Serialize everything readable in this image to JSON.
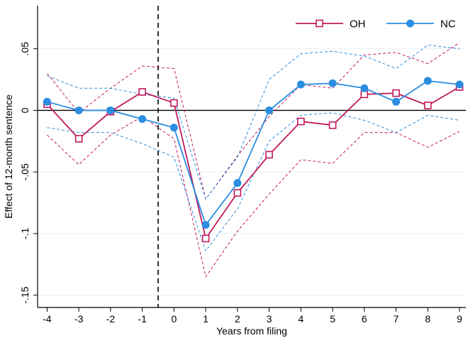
{
  "chart_data": {
    "type": "line",
    "title": "",
    "xlabel": "Years from filing",
    "ylabel": "Effect of 12-month sentence",
    "x": [
      -4,
      -3,
      -2,
      -1,
      0,
      1,
      2,
      3,
      4,
      5,
      6,
      7,
      8,
      9
    ],
    "xlim": [
      -4.3,
      9.2
    ],
    "ylim": [
      -0.16,
      0.085
    ],
    "x_tick_labels": [
      "-4",
      "-3",
      "-2",
      "-1",
      "0",
      "1",
      "2",
      "3",
      "4",
      "5",
      "6",
      "7",
      "8",
      "9"
    ],
    "y_ticks": [
      0.05,
      0,
      -0.05,
      -0.1,
      -0.15
    ],
    "y_tick_labels": [
      ".05",
      "0",
      "-.05",
      "-.1",
      "-.15"
    ],
    "reference_lines": {
      "horizontal_y": 0,
      "vertical_dashed_x": -0.5
    },
    "grid": "horizontal",
    "legend_position": "top-right",
    "series": [
      {
        "name": "OH",
        "color": "#c2185b",
        "marker": "hollow-square",
        "values": [
          0.005,
          -0.023,
          -0.001,
          0.015,
          0.006,
          -0.104,
          -0.067,
          -0.036,
          -0.009,
          -0.012,
          0.013,
          0.014,
          0.004,
          0.019
        ],
        "ci_lower": [
          -0.02,
          -0.044,
          -0.02,
          -0.005,
          -0.023,
          -0.135,
          -0.098,
          -0.068,
          -0.04,
          -0.043,
          -0.018,
          -0.018,
          -0.03,
          -0.017
        ],
        "ci_upper": [
          0.03,
          -0.002,
          0.018,
          0.036,
          0.034,
          -0.072,
          -0.037,
          -0.005,
          0.021,
          0.018,
          0.045,
          0.047,
          0.038,
          0.055
        ]
      },
      {
        "name": "NC",
        "color": "#2b8ee0",
        "marker": "filled-circle",
        "values": [
          0.007,
          0.0,
          0.0,
          -0.007,
          -0.014,
          -0.093,
          -0.059,
          0.0,
          0.021,
          0.022,
          0.018,
          0.007,
          0.024,
          0.021
        ],
        "ci_lower": [
          -0.014,
          -0.018,
          -0.018,
          -0.027,
          -0.038,
          -0.114,
          -0.08,
          -0.025,
          -0.004,
          -0.002,
          -0.008,
          -0.018,
          -0.004,
          -0.008
        ],
        "ci_upper": [
          0.028,
          0.018,
          0.018,
          0.013,
          0.01,
          -0.072,
          -0.038,
          0.025,
          0.046,
          0.048,
          0.044,
          0.034,
          0.053,
          0.05
        ]
      }
    ]
  }
}
